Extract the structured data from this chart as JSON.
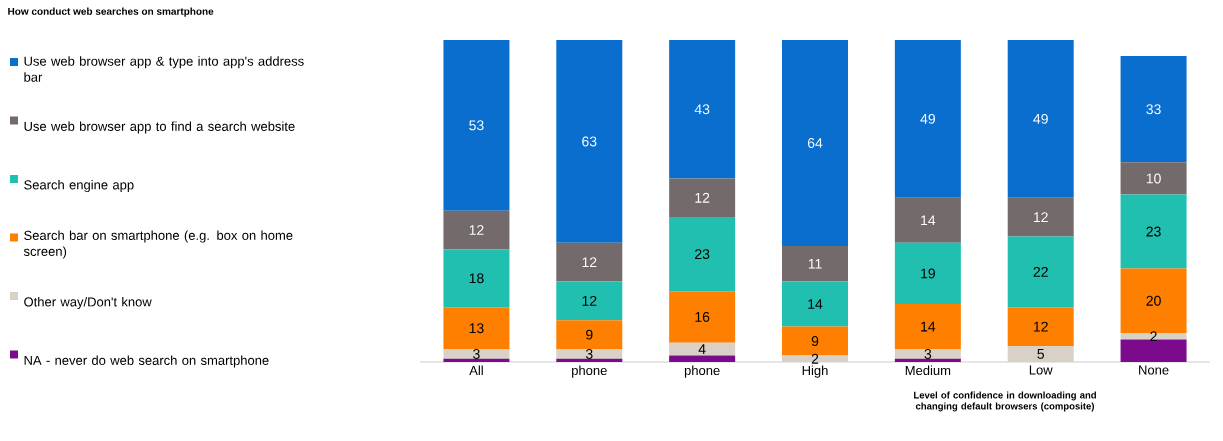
{
  "chart_data": {
    "type": "bar",
    "stacked": true,
    "title": "How conduct web searches on smartphone",
    "categories": [
      "All",
      "phone",
      "phone",
      "High",
      "Medium",
      "Low",
      "None"
    ],
    "series": [
      {
        "name": "NA - never do web search on smartphone",
        "color": "#7b0a8c",
        "values": [
          1,
          1,
          2,
          0,
          1,
          0,
          7
        ]
      },
      {
        "name": "Other way/Don't know",
        "color": "#d9d0c6",
        "values": [
          3,
          3,
          4,
          2,
          3,
          5,
          2
        ],
        "value_labels": [
          "3",
          "3",
          "4",
          "2",
          "3",
          "5",
          "2"
        ]
      },
      {
        "name": "Search bar on smartphone (e.g. box on home screen)",
        "color": "#ff8000",
        "values": [
          13,
          9,
          16,
          9,
          14,
          12,
          20
        ],
        "value_labels": [
          "13",
          "9",
          "16",
          "9",
          "14",
          "12",
          "20"
        ]
      },
      {
        "name": "Search engine app",
        "color": "#20bfb0",
        "values": [
          18,
          12,
          23,
          14,
          19,
          22,
          23
        ],
        "value_labels": [
          "18",
          "12",
          "23",
          "14",
          "19",
          "22",
          "23"
        ]
      },
      {
        "name": "Use web browser app to find a search website",
        "color": "#736b6b",
        "values": [
          12,
          12,
          12,
          11,
          14,
          12,
          10
        ],
        "value_labels": [
          "12",
          "12",
          "12",
          "11",
          "14",
          "12",
          "10"
        ]
      },
      {
        "name": "Use web browser app & type into app's address bar",
        "color": "#0a6ecf",
        "values": [
          53,
          63,
          43,
          64,
          49,
          49,
          33
        ],
        "value_labels": [
          "53",
          "63",
          "43",
          "64",
          "49",
          "49",
          "33"
        ]
      }
    ],
    "legend": "left",
    "annotations": [
      "Level of confidence in downloading and changing default browsers (composite)"
    ]
  }
}
